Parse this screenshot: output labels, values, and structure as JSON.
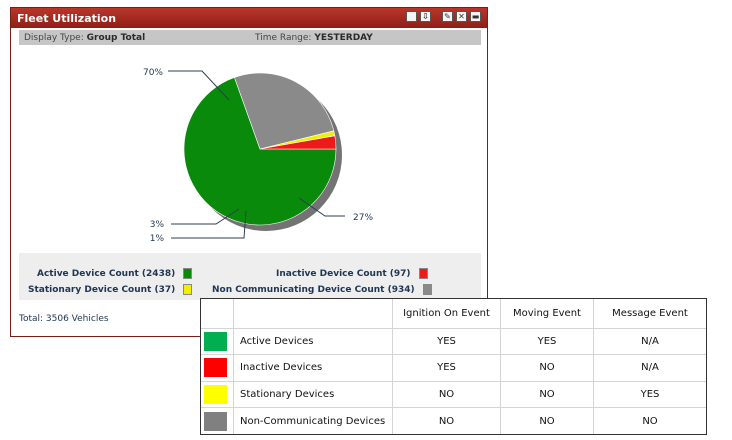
{
  "widget": {
    "title": "Fleet Utilization",
    "titlebar_icons": [
      "window-icon",
      "export-icon",
      "edit-icon",
      "delete-icon",
      "minimize-icon"
    ],
    "display_type_label": "Display Type:",
    "display_type_value": "Group Total",
    "time_range_label": "Time Range:",
    "time_range_value": "YESTERDAY",
    "total_text": "Total: 3506 Vehicles"
  },
  "chart_data": {
    "type": "pie",
    "slices": [
      {
        "label": "Active Device Count",
        "count": 2438,
        "percent_label": "70%",
        "color": "#0a8a0a"
      },
      {
        "label": "Non Communicating Device Count",
        "count": 934,
        "percent_label": "27%",
        "color": "#8a8a8a"
      },
      {
        "label": "Stationary Device Count",
        "count": 37,
        "percent_label": "1%",
        "color": "#f2ef00"
      },
      {
        "label": "Inactive Device Count",
        "count": 97,
        "percent_label": "3%",
        "color": "#ee1a1a"
      }
    ]
  },
  "legend": {
    "active": "Active Device Count (2438)",
    "inactive": "Inactive Device Count (97)",
    "stationary": "Stationary Device Count (37)",
    "noncomm": "Non Communicating Device Count (934)",
    "colors": {
      "active": "#0a8a0a",
      "inactive": "#ee1a1a",
      "stationary": "#f2ef00",
      "noncomm": "#8a8a8a"
    }
  },
  "matrix": {
    "headers": [
      "",
      "",
      "Ignition On Event",
      "Moving Event",
      "Message Event"
    ],
    "rows": [
      {
        "color": "#00b050",
        "label": "Active Devices",
        "ignition": "YES",
        "moving": "YES",
        "message": "N/A"
      },
      {
        "color": "#ff0000",
        "label": "Inactive Devices",
        "ignition": "YES",
        "moving": "NO",
        "message": "N/A"
      },
      {
        "color": "#ffff00",
        "label": "Stationary Devices",
        "ignition": "NO",
        "moving": "NO",
        "message": "YES"
      },
      {
        "color": "#808080",
        "label": "Non-Communicating Devices",
        "ignition": "NO",
        "moving": "NO",
        "message": "NO"
      }
    ]
  }
}
